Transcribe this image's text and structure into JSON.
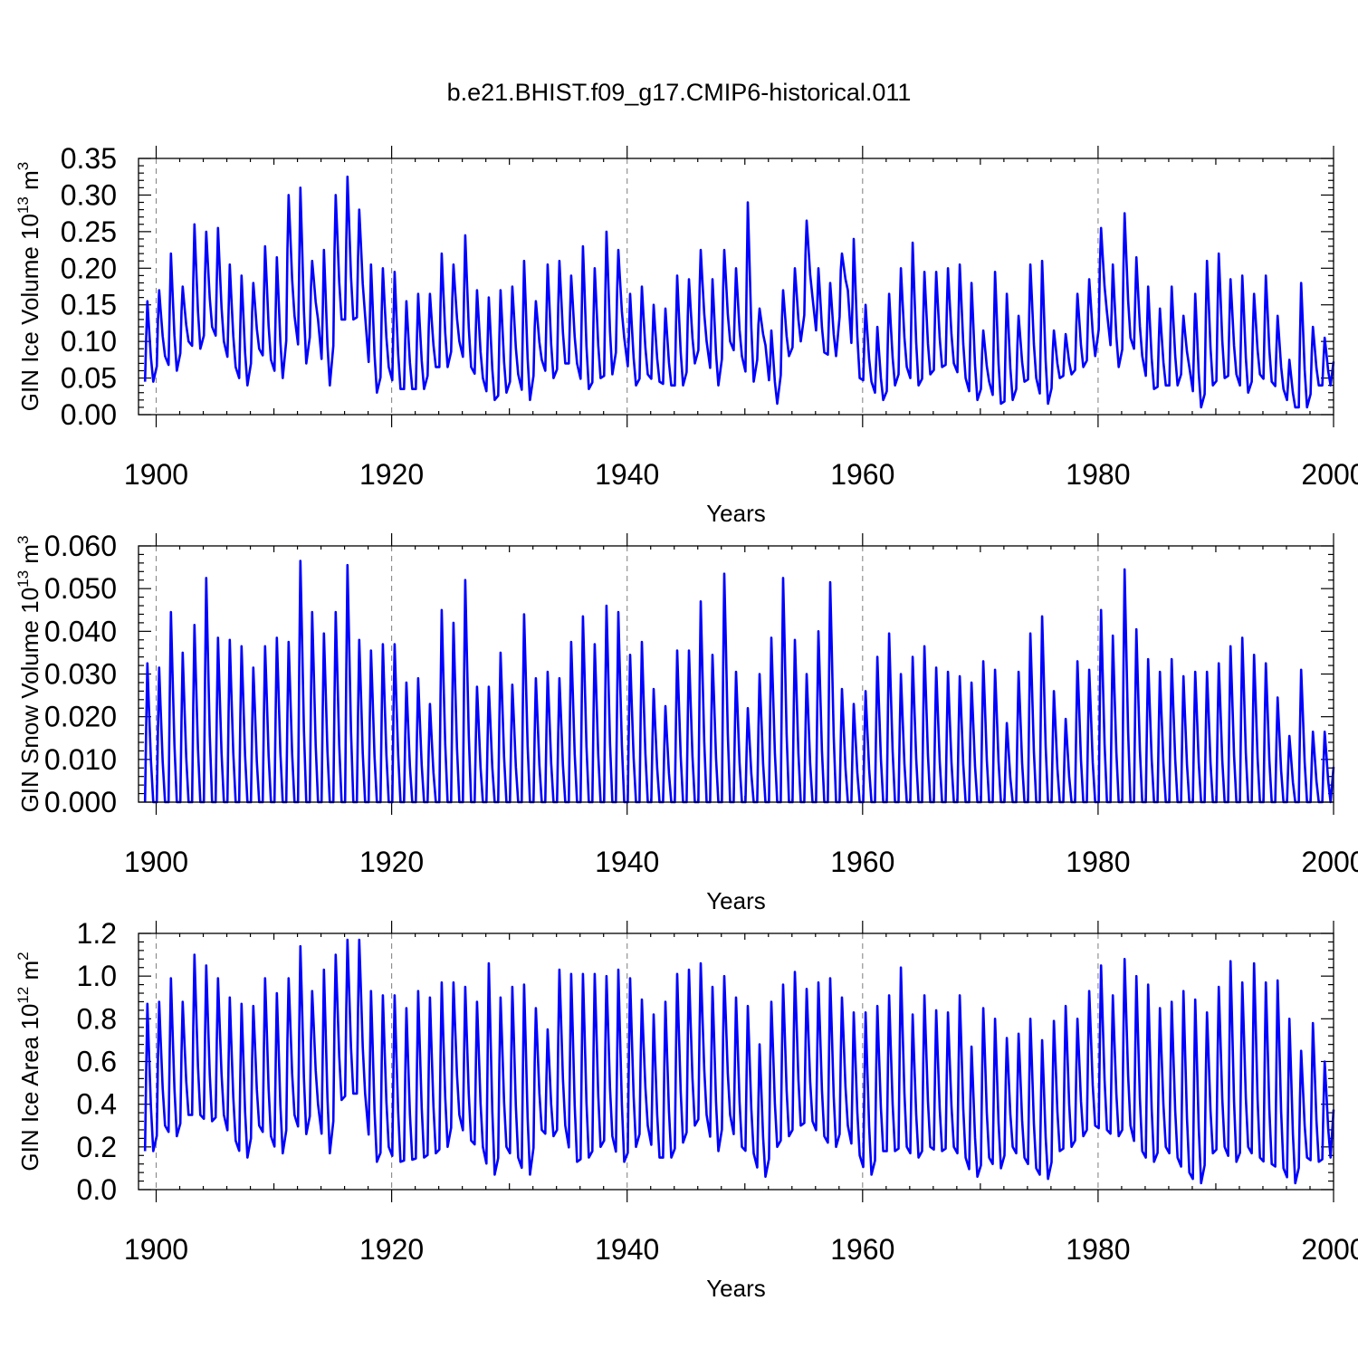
{
  "title": "b.e21.BHIST.f09_g17.CMIP6-historical.011",
  "colors": {
    "series": "#0000ff",
    "frame": "#000000",
    "grid": "#888888"
  },
  "chart_data": [
    {
      "type": "line",
      "title": "",
      "xlabel": "Years",
      "ylabel": {
        "main": "GIN Ice Volume 10",
        "exp": "13",
        "unit": " m",
        "unit_exp": "3"
      },
      "xlim": [
        1898.5,
        2000
      ],
      "ylim": [
        0,
        0.35
      ],
      "xticks": [
        1900,
        1920,
        1940,
        1960,
        1980,
        2000
      ],
      "xtick_labels": [
        "1900",
        "1920",
        "1940",
        "1960",
        "1980",
        "2000"
      ],
      "yticks": [
        0,
        0.05,
        0.1,
        0.15,
        0.2,
        0.25,
        0.3,
        0.35
      ],
      "ytick_labels": [
        "0.00",
        "0.05",
        "0.10",
        "0.15",
        "0.20",
        "0.25",
        "0.30",
        "0.35"
      ],
      "grid": "vertical dashed at major x ticks",
      "series": [
        {
          "x": [
            1899,
            1900,
            1901,
            1902,
            1903,
            1904,
            1905,
            1906,
            1907,
            1908,
            1909,
            1910,
            1911,
            1912,
            1913,
            1914,
            1915,
            1916,
            1917,
            1918,
            1919,
            1920,
            1921,
            1922,
            1923,
            1924,
            1925,
            1926,
            1927,
            1928,
            1929,
            1930,
            1931,
            1932,
            1933,
            1934,
            1935,
            1936,
            1937,
            1938,
            1939,
            1940,
            1941,
            1942,
            1943,
            1944,
            1945,
            1946,
            1947,
            1948,
            1949,
            1950,
            1951,
            1952,
            1953,
            1954,
            1955,
            1956,
            1957,
            1958,
            1959,
            1960,
            1961,
            1962,
            1963,
            1964,
            1965,
            1966,
            1967,
            1968,
            1969,
            1970,
            1971,
            1972,
            1973,
            1974,
            1975,
            1976,
            1977,
            1978,
            1979,
            1980,
            1981,
            1982,
            1983,
            1984,
            1985,
            1986,
            1987,
            1988,
            1989,
            1990,
            1991,
            1992,
            1993,
            1994,
            1995,
            1996,
            1997,
            1998,
            1999
          ],
          "max": [
            0.155,
            0.17,
            0.22,
            0.175,
            0.26,
            0.25,
            0.255,
            0.205,
            0.19,
            0.18,
            0.23,
            0.215,
            0.3,
            0.31,
            0.21,
            0.225,
            0.3,
            0.325,
            0.28,
            0.205,
            0.2,
            0.195,
            0.155,
            0.165,
            0.165,
            0.22,
            0.205,
            0.245,
            0.17,
            0.16,
            0.17,
            0.175,
            0.21,
            0.155,
            0.205,
            0.21,
            0.19,
            0.23,
            0.2,
            0.25,
            0.225,
            0.165,
            0.175,
            0.15,
            0.145,
            0.19,
            0.185,
            0.225,
            0.185,
            0.225,
            0.2,
            0.29,
            0.145,
            0.115,
            0.17,
            0.2,
            0.265,
            0.2,
            0.18,
            0.22,
            0.24,
            0.15,
            0.12,
            0.165,
            0.2,
            0.235,
            0.195,
            0.195,
            0.2,
            0.205,
            0.18,
            0.115,
            0.195,
            0.165,
            0.135,
            0.205,
            0.21,
            0.115,
            0.11,
            0.165,
            0.185,
            0.255,
            0.205,
            0.275,
            0.215,
            0.175,
            0.145,
            0.175,
            0.135,
            0.165,
            0.21,
            0.22,
            0.185,
            0.19,
            0.165,
            0.19,
            0.135,
            0.075,
            0.18,
            0.12,
            0.105
          ],
          "min": [
            0.045,
            0.08,
            0.06,
            0.1,
            0.09,
            0.12,
            0.1,
            0.065,
            0.04,
            0.09,
            0.075,
            0.05,
            0.135,
            0.07,
            0.13,
            0.04,
            0.13,
            0.13,
            0.135,
            0.03,
            0.065,
            0.035,
            0.035,
            0.035,
            0.065,
            0.065,
            0.1,
            0.065,
            0.05,
            0.02,
            0.03,
            0.055,
            0.02,
            0.075,
            0.05,
            0.07,
            0.07,
            0.035,
            0.05,
            0.055,
            0.105,
            0.04,
            0.055,
            0.045,
            0.04,
            0.04,
            0.07,
            0.1,
            0.04,
            0.1,
            0.08,
            0.045,
            0.095,
            0.015,
            0.08,
            0.1,
            0.16,
            0.085,
            0.08,
            0.17,
            0.05,
            0.045,
            0.02,
            0.04,
            0.065,
            0.04,
            0.055,
            0.065,
            0.07,
            0.05,
            0.02,
            0.045,
            0.015,
            0.02,
            0.045,
            0.05,
            0.015,
            0.05,
            0.055,
            0.065,
            0.08,
            0.14,
            0.065,
            0.105,
            0.08,
            0.035,
            0.04,
            0.04,
            0.065,
            0.01,
            0.04,
            0.05,
            0.055,
            0.03,
            0.055,
            0.045,
            0.035,
            0.01,
            0.01,
            0.04,
            0.04
          ]
        }
      ]
    },
    {
      "type": "line",
      "title": "",
      "xlabel": "Years",
      "ylabel": {
        "main": "GIN Snow Volume 10",
        "exp": "13",
        "unit": " m",
        "unit_exp": "3"
      },
      "xlim": [
        1898.5,
        2000
      ],
      "ylim": [
        0,
        0.06
      ],
      "xticks": [
        1900,
        1920,
        1940,
        1960,
        1980,
        2000
      ],
      "xtick_labels": [
        "1900",
        "1920",
        "1940",
        "1960",
        "1980",
        "2000"
      ],
      "yticks": [
        0,
        0.01,
        0.02,
        0.03,
        0.04,
        0.05,
        0.06
      ],
      "ytick_labels": [
        "0.000",
        "0.010",
        "0.020",
        "0.030",
        "0.040",
        "0.050",
        "0.060"
      ],
      "grid": "vertical dashed at major x ticks",
      "series": [
        {
          "x": [
            1899,
            1900,
            1901,
            1902,
            1903,
            1904,
            1905,
            1906,
            1907,
            1908,
            1909,
            1910,
            1911,
            1912,
            1913,
            1914,
            1915,
            1916,
            1917,
            1918,
            1919,
            1920,
            1921,
            1922,
            1923,
            1924,
            1925,
            1926,
            1927,
            1928,
            1929,
            1930,
            1931,
            1932,
            1933,
            1934,
            1935,
            1936,
            1937,
            1938,
            1939,
            1940,
            1941,
            1942,
            1943,
            1944,
            1945,
            1946,
            1947,
            1948,
            1949,
            1950,
            1951,
            1952,
            1953,
            1954,
            1955,
            1956,
            1957,
            1958,
            1959,
            1960,
            1961,
            1962,
            1963,
            1964,
            1965,
            1966,
            1967,
            1968,
            1969,
            1970,
            1971,
            1972,
            1973,
            1974,
            1975,
            1976,
            1977,
            1978,
            1979,
            1980,
            1981,
            1982,
            1983,
            1984,
            1985,
            1986,
            1987,
            1988,
            1989,
            1990,
            1991,
            1992,
            1993,
            1994,
            1995,
            1996,
            1997,
            1998,
            1999
          ],
          "max": [
            0.0325,
            0.0315,
            0.0445,
            0.035,
            0.0415,
            0.0525,
            0.0385,
            0.038,
            0.0365,
            0.0315,
            0.0365,
            0.0385,
            0.0375,
            0.0565,
            0.0445,
            0.0395,
            0.0445,
            0.0555,
            0.038,
            0.0355,
            0.037,
            0.037,
            0.028,
            0.029,
            0.023,
            0.045,
            0.042,
            0.052,
            0.027,
            0.027,
            0.035,
            0.0275,
            0.044,
            0.029,
            0.0305,
            0.029,
            0.0375,
            0.0435,
            0.037,
            0.046,
            0.0445,
            0.0345,
            0.0375,
            0.0265,
            0.0225,
            0.0355,
            0.0355,
            0.047,
            0.0345,
            0.0535,
            0.0305,
            0.022,
            0.03,
            0.0385,
            0.0525,
            0.038,
            0.03,
            0.04,
            0.0515,
            0.0265,
            0.023,
            0.026,
            0.034,
            0.0395,
            0.03,
            0.034,
            0.0365,
            0.0315,
            0.0305,
            0.0295,
            0.028,
            0.033,
            0.031,
            0.0185,
            0.0305,
            0.0395,
            0.0435,
            0.026,
            0.0195,
            0.033,
            0.031,
            0.045,
            0.039,
            0.0545,
            0.0405,
            0.0335,
            0.0305,
            0.0335,
            0.0295,
            0.0305,
            0.0305,
            0.0325,
            0.0365,
            0.0385,
            0.0345,
            0.0325,
            0.0245,
            0.0155,
            0.031,
            0.0165,
            0.0165
          ],
          "min": [
            0,
            0,
            0,
            0,
            0,
            0,
            0,
            0,
            0,
            0,
            0,
            0,
            0,
            0,
            0,
            0,
            0,
            0,
            0,
            0,
            0,
            0,
            0,
            0,
            0,
            0,
            0,
            0,
            0,
            0,
            0,
            0,
            0,
            0,
            0,
            0,
            0,
            0,
            0,
            0,
            0,
            0,
            0,
            0,
            0,
            0,
            0,
            0,
            0,
            0,
            0,
            0,
            0,
            0,
            0,
            0,
            0,
            0,
            0,
            0,
            0,
            0,
            0,
            0,
            0,
            0,
            0,
            0,
            0,
            0,
            0,
            0,
            0,
            0,
            0,
            0,
            0,
            0,
            0,
            0,
            0,
            0,
            0,
            0,
            0,
            0,
            0,
            0,
            0,
            0,
            0,
            0,
            0,
            0,
            0,
            0,
            0,
            0,
            0,
            0,
            0
          ]
        }
      ]
    },
    {
      "type": "line",
      "title": "",
      "xlabel": "Years",
      "ylabel": {
        "main": "GIN Ice Area 10",
        "exp": "12",
        "unit": " m",
        "unit_exp": "2"
      },
      "xlim": [
        1898.5,
        2000
      ],
      "ylim": [
        0,
        1.2
      ],
      "xticks": [
        1900,
        1920,
        1940,
        1960,
        1980,
        2000
      ],
      "xtick_labels": [
        "1900",
        "1920",
        "1940",
        "1960",
        "1980",
        "2000"
      ],
      "yticks": [
        0,
        0.2,
        0.4,
        0.6,
        0.8,
        1.0,
        1.2
      ],
      "ytick_labels": [
        "0.0",
        "0.2",
        "0.4",
        "0.6",
        "0.8",
        "1.0",
        "1.2"
      ],
      "grid": "vertical dashed at major x ticks",
      "series": [
        {
          "x": [
            1899,
            1900,
            1901,
            1902,
            1903,
            1904,
            1905,
            1906,
            1907,
            1908,
            1909,
            1910,
            1911,
            1912,
            1913,
            1914,
            1915,
            1916,
            1917,
            1918,
            1919,
            1920,
            1921,
            1922,
            1923,
            1924,
            1925,
            1926,
            1927,
            1928,
            1929,
            1930,
            1931,
            1932,
            1933,
            1934,
            1935,
            1936,
            1937,
            1938,
            1939,
            1940,
            1941,
            1942,
            1943,
            1944,
            1945,
            1946,
            1947,
            1948,
            1949,
            1950,
            1951,
            1952,
            1953,
            1954,
            1955,
            1956,
            1957,
            1958,
            1959,
            1960,
            1961,
            1962,
            1963,
            1964,
            1965,
            1966,
            1967,
            1968,
            1969,
            1970,
            1971,
            1972,
            1973,
            1974,
            1975,
            1976,
            1977,
            1978,
            1979,
            1980,
            1981,
            1982,
            1983,
            1984,
            1985,
            1986,
            1987,
            1988,
            1989,
            1990,
            1991,
            1992,
            1993,
            1994,
            1995,
            1996,
            1997,
            1998,
            1999
          ],
          "max": [
            0.87,
            0.88,
            0.99,
            0.88,
            1.1,
            1.05,
            0.99,
            0.9,
            0.87,
            0.86,
            0.99,
            0.92,
            0.99,
            1.14,
            0.93,
            1.03,
            1.1,
            1.17,
            1.17,
            0.93,
            0.91,
            0.91,
            0.85,
            0.93,
            0.9,
            0.97,
            0.97,
            0.95,
            0.88,
            1.06,
            0.9,
            0.95,
            0.96,
            0.85,
            0.75,
            1.03,
            1.01,
            1.01,
            1.01,
            1.0,
            1.03,
            0.99,
            0.89,
            0.82,
            0.88,
            1.01,
            1.03,
            1.06,
            0.95,
            1.0,
            0.9,
            0.86,
            0.68,
            0.88,
            0.96,
            1.02,
            0.94,
            0.97,
            0.99,
            0.9,
            0.83,
            0.83,
            0.86,
            0.91,
            1.04,
            0.82,
            0.91,
            0.84,
            0.83,
            0.91,
            0.67,
            0.85,
            0.8,
            0.71,
            0.73,
            0.8,
            0.7,
            0.79,
            0.86,
            0.8,
            0.93,
            1.05,
            0.91,
            1.08,
            1.0,
            0.96,
            0.85,
            0.88,
            0.93,
            0.89,
            0.83,
            0.95,
            1.07,
            0.97,
            1.06,
            0.97,
            0.98,
            0.8,
            0.65,
            0.78,
            0.6
          ],
          "min": [
            0.18,
            0.3,
            0.25,
            0.35,
            0.35,
            0.32,
            0.35,
            0.23,
            0.15,
            0.3,
            0.25,
            0.17,
            0.35,
            0.26,
            0.4,
            0.17,
            0.42,
            0.45,
            0.45,
            0.13,
            0.2,
            0.13,
            0.14,
            0.15,
            0.17,
            0.2,
            0.35,
            0.23,
            0.2,
            0.07,
            0.2,
            0.15,
            0.07,
            0.28,
            0.25,
            0.3,
            0.13,
            0.15,
            0.2,
            0.25,
            0.13,
            0.2,
            0.3,
            0.15,
            0.15,
            0.22,
            0.3,
            0.35,
            0.18,
            0.35,
            0.2,
            0.17,
            0.06,
            0.2,
            0.25,
            0.3,
            0.32,
            0.25,
            0.2,
            0.3,
            0.16,
            0.07,
            0.18,
            0.18,
            0.2,
            0.15,
            0.2,
            0.18,
            0.2,
            0.15,
            0.06,
            0.15,
            0.1,
            0.2,
            0.15,
            0.1,
            0.05,
            0.18,
            0.2,
            0.25,
            0.3,
            0.28,
            0.25,
            0.3,
            0.18,
            0.13,
            0.2,
            0.15,
            0.08,
            0.03,
            0.17,
            0.2,
            0.13,
            0.2,
            0.15,
            0.12,
            0.1,
            0.03,
            0.15,
            0.13,
            0.15
          ]
        }
      ]
    }
  ]
}
